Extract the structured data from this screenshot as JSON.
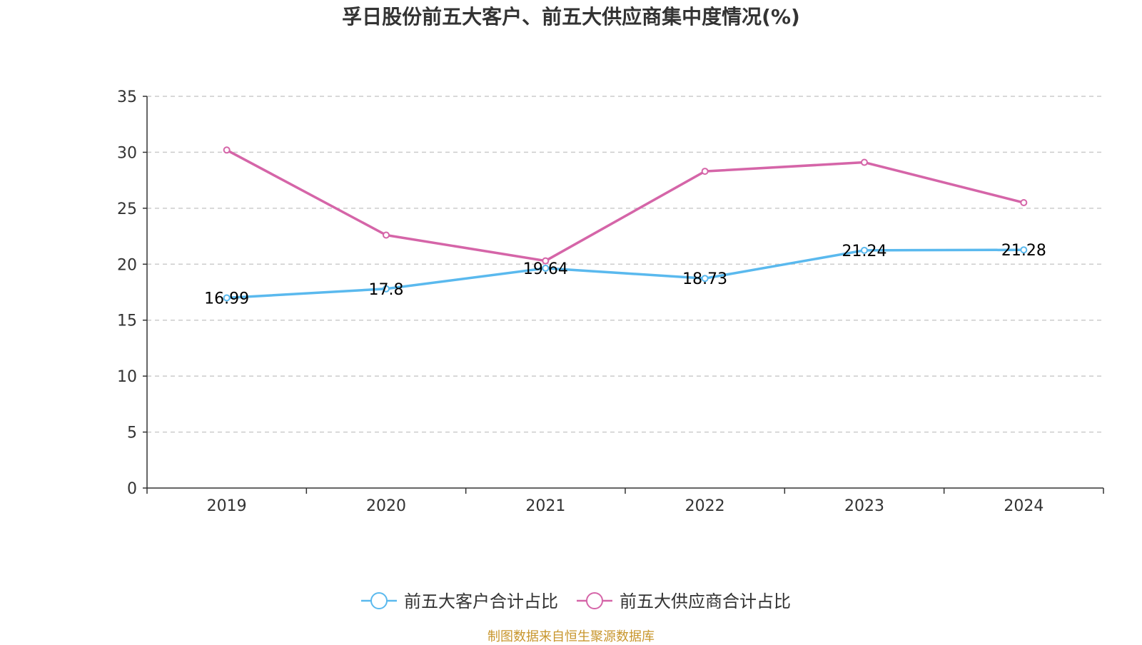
{
  "chart_data": {
    "type": "line",
    "title": "孚日股份前五大客户、前五大供应商集中度情况(%)",
    "categories": [
      "2019",
      "2020",
      "2021",
      "2022",
      "2023",
      "2024"
    ],
    "ylim": [
      0,
      35
    ],
    "yticks": [
      0,
      5,
      10,
      15,
      20,
      25,
      30,
      35
    ],
    "grid": true,
    "legend_position": "bottom",
    "series": [
      {
        "name": "前五大客户合计占比",
        "color": "#5ab9ee",
        "values": [
          16.99,
          17.8,
          19.64,
          18.73,
          21.24,
          21.28
        ],
        "labels": [
          "16.99",
          "17.8",
          "19.64",
          "18.73",
          "21.24",
          "21.28"
        ],
        "show_labels": true
      },
      {
        "name": "前五大供应商合计占比",
        "color": "#d565a8",
        "values": [
          30.2,
          22.6,
          20.3,
          28.3,
          29.1,
          25.5
        ],
        "show_labels": false
      }
    ]
  },
  "source_note": "制图数据来自恒生聚源数据库"
}
